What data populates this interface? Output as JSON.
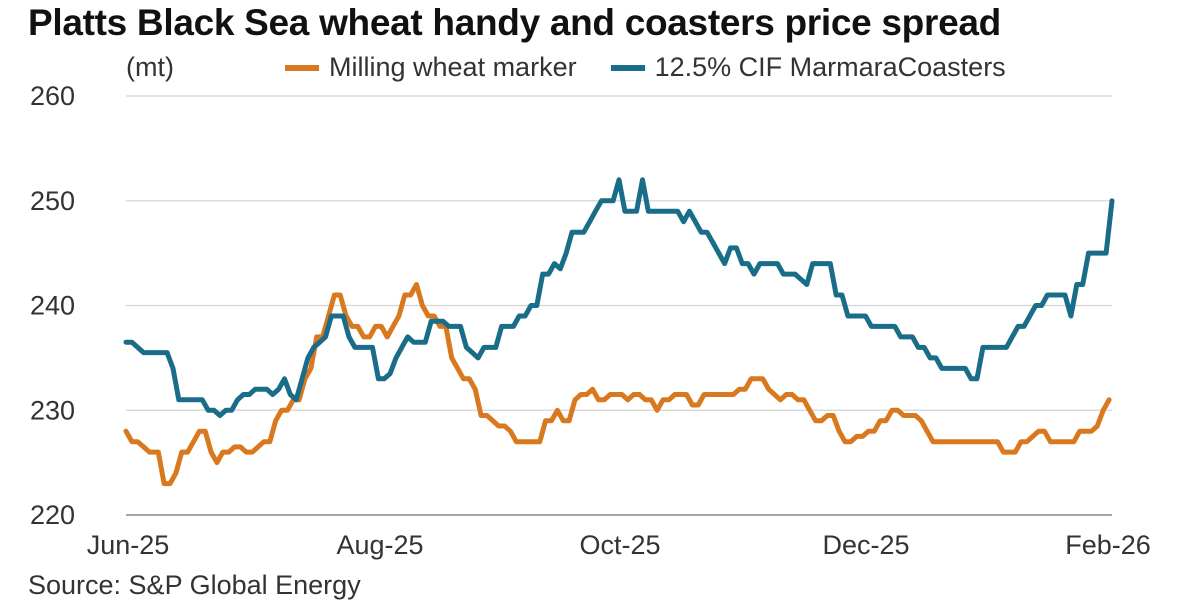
{
  "title": "Platts Black Sea wheat handy and coasters price spread",
  "unit": "(mt)",
  "source": "Source: S&P Global Energy",
  "chart_data": {
    "type": "line",
    "title": "Platts Black Sea wheat handy and coasters price spread",
    "ylabel": "(mt)",
    "xlabel": "",
    "ylim": [
      220,
      260
    ],
    "yticks": [
      220,
      230,
      240,
      250,
      260
    ],
    "xticks": [
      "Jun-25",
      "Aug-25",
      "Oct-25",
      "Dec-25",
      "Feb-26"
    ],
    "grid": true,
    "legend_position": "top",
    "series": [
      {
        "name": "Milling wheat marker",
        "color": "#D9791F",
        "points": [
          [
            0,
            228
          ],
          [
            2,
            227
          ],
          [
            4,
            227
          ],
          [
            6,
            226.5
          ],
          [
            8,
            226
          ],
          [
            11,
            226
          ],
          [
            13,
            223
          ],
          [
            15,
            223
          ],
          [
            17,
            224
          ],
          [
            19,
            226
          ],
          [
            21,
            226
          ],
          [
            23,
            227
          ],
          [
            25,
            228
          ],
          [
            27,
            228
          ],
          [
            29,
            226
          ],
          [
            31,
            225
          ],
          [
            33,
            226
          ],
          [
            35,
            226
          ],
          [
            37,
            226.5
          ],
          [
            39,
            226.5
          ],
          [
            41,
            226
          ],
          [
            43,
            226
          ],
          [
            45,
            226.5
          ],
          [
            47,
            227
          ],
          [
            49,
            227
          ],
          [
            51,
            229
          ],
          [
            53,
            230
          ],
          [
            55,
            230
          ],
          [
            57,
            231
          ],
          [
            59,
            231
          ],
          [
            61,
            233
          ],
          [
            63,
            234
          ],
          [
            65,
            237
          ],
          [
            67,
            237
          ],
          [
            69,
            239
          ],
          [
            71,
            241
          ],
          [
            73,
            241
          ],
          [
            75,
            239
          ],
          [
            77,
            238
          ],
          [
            79,
            238
          ],
          [
            81,
            237
          ],
          [
            83,
            237
          ],
          [
            85,
            238
          ],
          [
            87,
            238
          ],
          [
            89,
            237
          ],
          [
            91,
            238
          ],
          [
            93,
            239
          ],
          [
            95,
            241
          ],
          [
            97,
            241
          ],
          [
            99,
            242
          ],
          [
            101,
            240
          ],
          [
            103,
            239
          ],
          [
            105,
            239
          ],
          [
            107,
            238
          ],
          [
            109,
            238
          ],
          [
            111,
            235
          ],
          [
            113,
            234
          ],
          [
            115,
            233
          ],
          [
            117,
            233
          ],
          [
            119,
            232
          ],
          [
            121,
            229.5
          ],
          [
            123,
            229.5
          ],
          [
            125,
            229
          ],
          [
            127,
            228.5
          ],
          [
            129,
            228.5
          ],
          [
            131,
            228
          ],
          [
            133,
            227
          ],
          [
            135,
            227
          ],
          [
            137,
            227
          ],
          [
            139,
            227
          ],
          [
            141,
            227
          ],
          [
            143,
            229
          ],
          [
            145,
            229
          ],
          [
            147,
            230
          ],
          [
            149,
            229
          ],
          [
            151,
            229
          ],
          [
            153,
            231
          ],
          [
            155,
            231.5
          ],
          [
            157,
            231.5
          ],
          [
            159,
            232
          ],
          [
            161,
            231
          ],
          [
            163,
            231
          ],
          [
            165,
            231.5
          ],
          [
            167,
            231.5
          ],
          [
            169,
            231.5
          ],
          [
            171,
            231
          ],
          [
            173,
            231.5
          ],
          [
            175,
            231.5
          ],
          [
            177,
            231
          ],
          [
            179,
            231
          ],
          [
            181,
            230
          ],
          [
            183,
            231
          ],
          [
            185,
            231
          ],
          [
            187,
            231.5
          ],
          [
            189,
            231.5
          ],
          [
            191,
            231.5
          ],
          [
            193,
            230.5
          ],
          [
            195,
            230.5
          ],
          [
            197,
            231.5
          ],
          [
            199,
            231.5
          ],
          [
            203,
            231.5
          ],
          [
            207,
            231.5
          ],
          [
            209,
            232
          ],
          [
            211,
            232
          ],
          [
            213,
            233
          ],
          [
            215,
            233
          ],
          [
            217,
            233
          ],
          [
            219,
            232
          ],
          [
            221,
            231.5
          ],
          [
            223,
            231
          ],
          [
            225,
            231.5
          ],
          [
            227,
            231.5
          ],
          [
            229,
            231
          ],
          [
            231,
            231
          ],
          [
            233,
            230
          ],
          [
            235,
            229
          ],
          [
            237,
            229
          ],
          [
            239,
            229.5
          ],
          [
            241,
            229.5
          ],
          [
            243,
            228
          ],
          [
            245,
            227
          ],
          [
            247,
            227
          ],
          [
            249,
            227.5
          ],
          [
            251,
            227.5
          ],
          [
            253,
            228
          ],
          [
            255,
            228
          ],
          [
            257,
            229
          ],
          [
            259,
            229
          ],
          [
            261,
            230
          ],
          [
            263,
            230
          ],
          [
            265,
            229.5
          ],
          [
            267,
            229.5
          ],
          [
            269,
            229.5
          ],
          [
            271,
            229
          ],
          [
            273,
            228
          ],
          [
            275,
            227
          ],
          [
            279,
            227
          ],
          [
            283,
            227
          ],
          [
            287,
            227
          ],
          [
            291,
            227
          ],
          [
            295,
            227
          ],
          [
            297,
            227
          ],
          [
            299,
            226
          ],
          [
            301,
            226
          ],
          [
            303,
            226
          ],
          [
            305,
            227
          ],
          [
            307,
            227
          ],
          [
            309,
            227.5
          ],
          [
            311,
            228
          ],
          [
            313,
            228
          ],
          [
            315,
            227
          ],
          [
            317,
            227
          ],
          [
            319,
            227
          ],
          [
            321,
            227
          ],
          [
            323,
            227
          ],
          [
            325,
            228
          ],
          [
            327,
            228
          ],
          [
            329,
            228
          ],
          [
            331,
            228.5
          ],
          [
            333,
            230
          ],
          [
            335,
            231
          ]
        ]
      },
      {
        "name": "12.5% CIF MarmaraCoasters",
        "color": "#1A6D88",
        "points": [
          [
            0,
            236.5
          ],
          [
            2,
            236.5
          ],
          [
            4,
            236
          ],
          [
            6,
            235.5
          ],
          [
            8,
            235.5
          ],
          [
            10,
            235.5
          ],
          [
            12,
            235.5
          ],
          [
            14,
            235.5
          ],
          [
            16,
            234
          ],
          [
            18,
            231
          ],
          [
            20,
            231
          ],
          [
            22,
            231
          ],
          [
            24,
            231
          ],
          [
            26,
            231
          ],
          [
            28,
            230
          ],
          [
            30,
            230
          ],
          [
            32,
            229.5
          ],
          [
            34,
            230
          ],
          [
            36,
            230
          ],
          [
            38,
            231
          ],
          [
            40,
            231.5
          ],
          [
            42,
            231.5
          ],
          [
            44,
            232
          ],
          [
            46,
            232
          ],
          [
            48,
            232
          ],
          [
            50,
            231.5
          ],
          [
            52,
            232
          ],
          [
            54,
            233
          ],
          [
            56,
            231.5
          ],
          [
            58,
            231
          ],
          [
            60,
            233
          ],
          [
            62,
            235
          ],
          [
            64,
            236
          ],
          [
            66,
            236.5
          ],
          [
            68,
            237
          ],
          [
            70,
            239
          ],
          [
            72,
            239
          ],
          [
            74,
            239
          ],
          [
            76,
            237
          ],
          [
            78,
            236
          ],
          [
            80,
            236
          ],
          [
            82,
            236
          ],
          [
            84,
            236
          ],
          [
            86,
            233
          ],
          [
            88,
            233
          ],
          [
            90,
            233.5
          ],
          [
            92,
            235
          ],
          [
            94,
            236
          ],
          [
            96,
            237
          ],
          [
            98,
            236.5
          ],
          [
            100,
            236.5
          ],
          [
            102,
            236.5
          ],
          [
            104,
            238.5
          ],
          [
            106,
            238.5
          ],
          [
            108,
            238.5
          ],
          [
            110,
            238
          ],
          [
            112,
            238
          ],
          [
            114,
            238
          ],
          [
            116,
            236
          ],
          [
            118,
            235.5
          ],
          [
            120,
            235
          ],
          [
            122,
            236
          ],
          [
            124,
            236
          ],
          [
            126,
            236
          ],
          [
            128,
            238
          ],
          [
            130,
            238
          ],
          [
            132,
            238
          ],
          [
            134,
            239
          ],
          [
            136,
            239
          ],
          [
            138,
            240
          ],
          [
            140,
            240
          ],
          [
            142,
            243
          ],
          [
            144,
            243
          ],
          [
            146,
            244
          ],
          [
            148,
            243.5
          ],
          [
            150,
            245
          ],
          [
            152,
            247
          ],
          [
            154,
            247
          ],
          [
            156,
            247
          ],
          [
            158,
            248
          ],
          [
            160,
            249
          ],
          [
            162,
            250
          ],
          [
            164,
            250
          ],
          [
            166,
            250
          ],
          [
            168,
            252
          ],
          [
            170,
            249
          ],
          [
            172,
            249
          ],
          [
            174,
            249
          ],
          [
            176,
            252
          ],
          [
            178,
            249
          ],
          [
            180,
            249
          ],
          [
            182,
            249
          ],
          [
            184,
            249
          ],
          [
            186,
            249
          ],
          [
            188,
            249
          ],
          [
            190,
            248
          ],
          [
            192,
            249
          ],
          [
            194,
            248
          ],
          [
            196,
            247
          ],
          [
            198,
            247
          ],
          [
            200,
            246
          ],
          [
            202,
            245
          ],
          [
            204,
            244
          ],
          [
            206,
            245.5
          ],
          [
            208,
            245.5
          ],
          [
            210,
            244
          ],
          [
            212,
            244
          ],
          [
            214,
            243
          ],
          [
            216,
            244
          ],
          [
            218,
            244
          ],
          [
            220,
            244
          ],
          [
            222,
            244
          ],
          [
            224,
            243
          ],
          [
            226,
            243
          ],
          [
            228,
            243
          ],
          [
            230,
            242.5
          ],
          [
            232,
            242
          ],
          [
            234,
            244
          ],
          [
            236,
            244
          ],
          [
            238,
            244
          ],
          [
            240,
            244
          ],
          [
            242,
            241
          ],
          [
            244,
            241
          ],
          [
            246,
            239
          ],
          [
            248,
            239
          ],
          [
            250,
            239
          ],
          [
            252,
            239
          ],
          [
            254,
            238
          ],
          [
            256,
            238
          ],
          [
            258,
            238
          ],
          [
            260,
            238
          ],
          [
            262,
            238
          ],
          [
            264,
            237
          ],
          [
            266,
            237
          ],
          [
            268,
            237
          ],
          [
            270,
            236
          ],
          [
            272,
            236
          ],
          [
            274,
            235
          ],
          [
            276,
            235
          ],
          [
            278,
            234
          ],
          [
            280,
            234
          ],
          [
            282,
            234
          ],
          [
            284,
            234
          ],
          [
            286,
            234
          ],
          [
            288,
            233
          ],
          [
            290,
            233
          ],
          [
            292,
            236
          ],
          [
            294,
            236
          ],
          [
            296,
            236
          ],
          [
            298,
            236
          ],
          [
            300,
            236
          ],
          [
            302,
            237
          ],
          [
            304,
            238
          ],
          [
            306,
            238
          ],
          [
            308,
            239
          ],
          [
            310,
            240
          ],
          [
            312,
            240
          ],
          [
            314,
            241
          ],
          [
            316,
            241
          ],
          [
            318,
            241
          ],
          [
            320,
            241
          ],
          [
            322,
            239
          ],
          [
            324,
            242
          ],
          [
            326,
            242
          ],
          [
            328,
            245
          ],
          [
            330,
            245
          ],
          [
            332,
            245
          ],
          [
            334,
            245
          ],
          [
            336,
            250
          ]
        ]
      }
    ]
  }
}
